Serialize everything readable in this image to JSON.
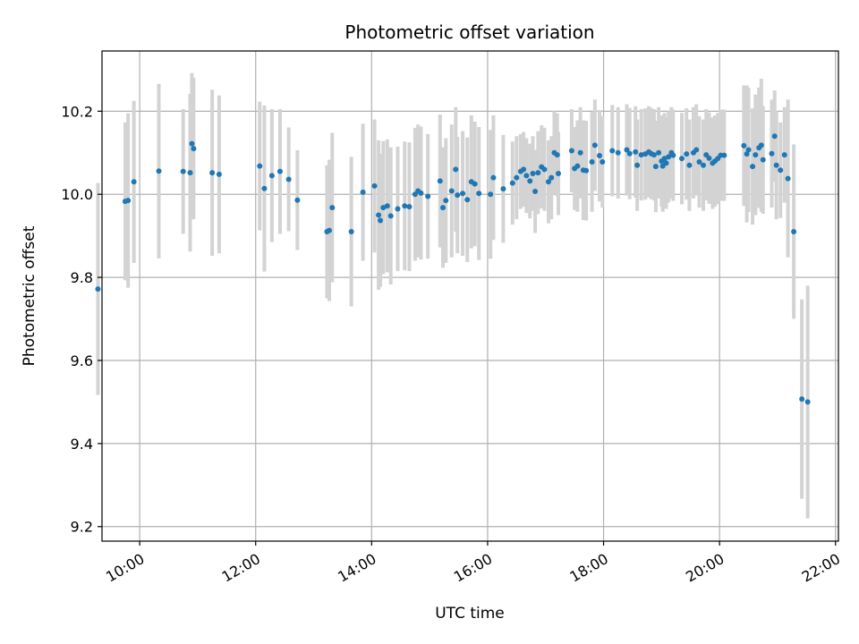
{
  "chart_data": {
    "type": "scatter",
    "title": "Photometric offset variation",
    "xlabel": "UTC time",
    "ylabel": "Photometric offset",
    "xlim": [
      9.35,
      22.05
    ],
    "ylim": [
      9.165,
      10.345
    ],
    "grid": true,
    "legend": "none",
    "x_ticks": [
      {
        "value": 10,
        "label": "10:00"
      },
      {
        "value": 12,
        "label": "12:00"
      },
      {
        "value": 14,
        "label": "14:00"
      },
      {
        "value": 16,
        "label": "16:00"
      },
      {
        "value": 18,
        "label": "18:00"
      },
      {
        "value": 20,
        "label": "20:00"
      },
      {
        "value": 22,
        "label": "22:00"
      }
    ],
    "y_ticks": [
      {
        "value": 9.2,
        "label": "9.2"
      },
      {
        "value": 9.4,
        "label": "9.4"
      },
      {
        "value": 9.6,
        "label": "9.6"
      },
      {
        "value": 9.8,
        "label": "9.8"
      },
      {
        "value": 10.0,
        "label": "10.0"
      },
      {
        "value": 10.2,
        "label": "10.2"
      }
    ],
    "colors": {
      "point": "#1f77b4",
      "errorbar": "#d3d3d3",
      "grid": "#b0b0b0"
    },
    "series": [
      {
        "name": "offset",
        "points": [
          [
            9.28,
            9.772,
            0.255
          ],
          [
            9.75,
            9.983,
            0.19
          ],
          [
            9.8,
            9.985,
            0.21
          ],
          [
            9.9,
            10.03,
            0.195
          ],
          [
            10.33,
            10.056,
            0.21
          ],
          [
            10.75,
            10.055,
            0.15
          ],
          [
            10.87,
            10.052,
            0.19
          ],
          [
            10.9,
            10.122,
            0.17
          ],
          [
            10.93,
            10.11,
            0.17
          ],
          [
            11.25,
            10.052,
            0.2
          ],
          [
            11.37,
            10.048,
            0.19
          ],
          [
            12.07,
            10.068,
            0.155
          ],
          [
            12.15,
            10.014,
            0.2
          ],
          [
            12.28,
            10.045,
            0.16
          ],
          [
            12.42,
            10.055,
            0.15
          ],
          [
            12.57,
            10.036,
            0.125
          ],
          [
            12.72,
            9.986,
            0.12
          ],
          [
            13.23,
            9.91,
            0.16
          ],
          [
            13.27,
            9.913,
            0.17
          ],
          [
            13.32,
            9.968,
            0.18
          ],
          [
            13.65,
            9.91,
            0.18
          ],
          [
            13.85,
            10.005,
            0.165
          ],
          [
            14.05,
            10.02,
            0.16
          ],
          [
            14.12,
            9.95,
            0.18
          ],
          [
            14.15,
            9.937,
            0.16
          ],
          [
            14.2,
            9.968,
            0.16
          ],
          [
            14.27,
            9.972,
            0.16
          ],
          [
            14.33,
            9.948,
            0.165
          ],
          [
            14.45,
            9.965,
            0.15
          ],
          [
            14.57,
            9.972,
            0.155
          ],
          [
            14.65,
            9.97,
            0.155
          ],
          [
            14.75,
            10.0,
            0.16
          ],
          [
            14.8,
            10.008,
            0.16
          ],
          [
            14.85,
            10.003,
            0.16
          ],
          [
            14.97,
            9.995,
            0.15
          ],
          [
            15.18,
            10.032,
            0.16
          ],
          [
            15.23,
            9.968,
            0.145
          ],
          [
            15.28,
            9.985,
            0.15
          ],
          [
            15.38,
            10.008,
            0.16
          ],
          [
            15.45,
            10.06,
            0.15
          ],
          [
            15.48,
            9.998,
            0.14
          ],
          [
            15.57,
            10.002,
            0.15
          ],
          [
            15.65,
            9.987,
            0.15
          ],
          [
            15.72,
            10.03,
            0.16
          ],
          [
            15.78,
            10.025,
            0.15
          ],
          [
            15.85,
            10.002,
            0.16
          ],
          [
            16.05,
            10.0,
            0.155
          ],
          [
            16.1,
            10.04,
            0.15
          ],
          [
            16.27,
            10.013,
            0.13
          ],
          [
            16.43,
            10.027,
            0.1
          ],
          [
            16.5,
            10.04,
            0.1
          ],
          [
            16.57,
            10.055,
            0.09
          ],
          [
            16.62,
            10.06,
            0.09
          ],
          [
            16.67,
            10.045,
            0.09
          ],
          [
            16.73,
            10.032,
            0.09
          ],
          [
            16.78,
            10.05,
            0.09
          ],
          [
            16.82,
            10.007,
            0.1
          ],
          [
            16.87,
            10.052,
            0.1
          ],
          [
            16.93,
            10.066,
            0.1
          ],
          [
            16.98,
            10.06,
            0.1
          ],
          [
            17.05,
            10.03,
            0.1
          ],
          [
            17.1,
            10.04,
            0.1
          ],
          [
            17.15,
            10.1,
            0.1
          ],
          [
            17.2,
            10.095,
            0.1
          ],
          [
            17.22,
            10.05,
            0.1
          ],
          [
            17.45,
            10.105,
            0.1
          ],
          [
            17.5,
            10.062,
            0.1
          ],
          [
            17.55,
            10.068,
            0.11
          ],
          [
            17.6,
            10.1,
            0.11
          ],
          [
            17.65,
            10.058,
            0.12
          ],
          [
            17.7,
            10.057,
            0.12
          ],
          [
            17.8,
            10.078,
            0.12
          ],
          [
            17.85,
            10.118,
            0.11
          ],
          [
            17.93,
            10.093,
            0.11
          ],
          [
            17.98,
            10.078,
            0.11
          ],
          [
            18.15,
            10.105,
            0.11
          ],
          [
            18.25,
            10.1,
            0.11
          ],
          [
            18.4,
            10.107,
            0.11
          ],
          [
            18.45,
            10.098,
            0.11
          ],
          [
            18.55,
            10.102,
            0.11
          ],
          [
            18.58,
            10.07,
            0.11
          ],
          [
            18.65,
            10.095,
            0.11
          ],
          [
            18.72,
            10.097,
            0.11
          ],
          [
            18.78,
            10.102,
            0.11
          ],
          [
            18.82,
            10.098,
            0.11
          ],
          [
            18.87,
            10.095,
            0.11
          ],
          [
            18.9,
            10.067,
            0.11
          ],
          [
            18.95,
            10.1,
            0.11
          ],
          [
            19.0,
            10.08,
            0.11
          ],
          [
            19.02,
            10.068,
            0.11
          ],
          [
            19.05,
            10.086,
            0.11
          ],
          [
            19.08,
            10.075,
            0.11
          ],
          [
            19.12,
            10.09,
            0.11
          ],
          [
            19.17,
            10.1,
            0.11
          ],
          [
            19.2,
            10.094,
            0.11
          ],
          [
            19.35,
            10.086,
            0.11
          ],
          [
            19.43,
            10.097,
            0.11
          ],
          [
            19.48,
            10.07,
            0.11
          ],
          [
            19.55,
            10.1,
            0.11
          ],
          [
            19.6,
            10.107,
            0.11
          ],
          [
            19.65,
            10.078,
            0.11
          ],
          [
            19.72,
            10.07,
            0.11
          ],
          [
            19.77,
            10.095,
            0.11
          ],
          [
            19.82,
            10.087,
            0.11
          ],
          [
            19.88,
            10.075,
            0.11
          ],
          [
            19.92,
            10.08,
            0.11
          ],
          [
            19.97,
            10.086,
            0.11
          ],
          [
            20.02,
            10.094,
            0.11
          ],
          [
            20.08,
            10.094,
            0.11
          ],
          [
            20.42,
            10.117,
            0.145
          ],
          [
            20.47,
            10.097,
            0.165
          ],
          [
            20.5,
            10.107,
            0.15
          ],
          [
            20.57,
            10.067,
            0.14
          ],
          [
            20.62,
            10.095,
            0.145
          ],
          [
            20.68,
            10.112,
            0.145
          ],
          [
            20.72,
            10.118,
            0.16
          ],
          [
            20.75,
            10.083,
            0.13
          ],
          [
            20.9,
            10.098,
            0.13
          ],
          [
            20.95,
            10.14,
            0.11
          ],
          [
            20.98,
            10.07,
            0.13
          ],
          [
            21.05,
            10.058,
            0.115
          ],
          [
            21.12,
            10.095,
            0.115
          ],
          [
            21.18,
            10.038,
            0.19
          ],
          [
            21.28,
            9.91,
            0.21
          ],
          [
            21.42,
            9.507,
            0.24
          ],
          [
            21.52,
            9.5,
            0.28
          ]
        ]
      }
    ]
  }
}
